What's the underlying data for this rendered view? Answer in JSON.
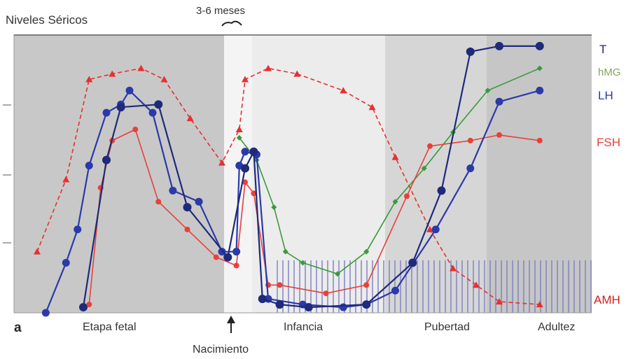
{
  "chart_data": {
    "type": "line",
    "title": "Niveles Séricos",
    "annotation_top": "3-6 meses",
    "panel_label": "a",
    "birth_label": "Nacimiento",
    "stage_labels": [
      "Etapa fetal",
      "Infancia",
      "Pubertad",
      "Adultez"
    ],
    "xlim": [
      0,
      100
    ],
    "ylim": [
      0,
      100
    ],
    "grid": false,
    "legend": "right-side labels",
    "series": [
      {
        "name": "T",
        "color": "#1e2a7a",
        "x": [
          12,
          16,
          18.5,
          25,
          30,
          37,
          40,
          41.5,
          43,
          46,
          51,
          61,
          69,
          74,
          79,
          84,
          91
        ],
        "y": [
          2,
          55,
          74,
          75,
          38,
          20,
          52,
          58,
          5,
          3,
          2,
          3,
          18,
          44,
          94,
          96,
          96
        ]
      },
      {
        "name": "LH",
        "color": "#2a3aa8",
        "x": [
          5.5,
          9,
          11,
          13,
          16,
          18.5,
          20,
          24,
          27.5,
          32,
          36,
          38.5,
          39,
          40,
          42,
          44,
          50,
          57,
          61,
          66,
          73,
          79,
          84,
          91
        ],
        "y": [
          0,
          18,
          30,
          53,
          72,
          75,
          80,
          72,
          44,
          40,
          22,
          22,
          53,
          58,
          57,
          5,
          3,
          2,
          3,
          8,
          30,
          52,
          76,
          80
        ]
      },
      {
        "name": "FSH",
        "color": "#e8403a",
        "x": [
          13,
          15,
          17,
          21,
          25,
          30,
          35,
          38.5,
          40,
          41.5,
          44,
          46,
          54,
          61,
          68,
          72,
          79,
          84,
          91
        ],
        "y": [
          3,
          45,
          62,
          66,
          40,
          30,
          20,
          17,
          47,
          43,
          10,
          10,
          7,
          10,
          42,
          60,
          62,
          64,
          62
        ]
      },
      {
        "name": "hMG",
        "color": "#3a9a3a",
        "x": [
          39,
          42,
          45,
          47,
          50,
          56,
          61,
          66,
          71,
          76,
          82,
          91
        ],
        "y": [
          63,
          55,
          38,
          22,
          18,
          14,
          22,
          40,
          52,
          65,
          80,
          88
        ]
      },
      {
        "name": "AMH",
        "color": "#e63030",
        "x": [
          4,
          9,
          13,
          17,
          22,
          26,
          30.5,
          36,
          39,
          40,
          44,
          49,
          57,
          62,
          66,
          72,
          76,
          80,
          84,
          91
        ],
        "y": [
          22,
          48,
          84,
          86,
          88,
          84,
          70,
          54,
          66,
          84,
          88,
          86,
          80,
          74,
          56,
          30,
          16,
          10,
          4,
          3
        ]
      }
    ]
  },
  "legend": {
    "T": "T",
    "hMG": "hMG",
    "LH": "LH",
    "FSH": "FSH",
    "AMH": "AMH"
  }
}
